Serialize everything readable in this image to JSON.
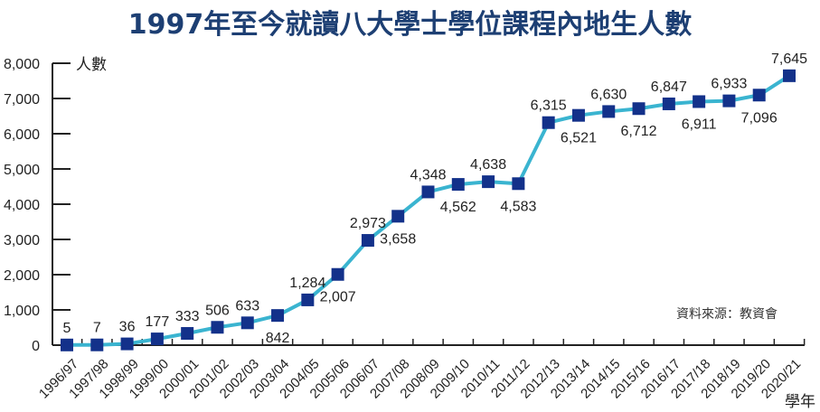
{
  "title": "1997年至今就讀八大學士學位課程內地生人數",
  "source_note": "資料來源：教資會",
  "colors": {
    "title": "#1d3f73",
    "line": "#3ab4d0",
    "marker": "#13318a",
    "axis": "#222222"
  },
  "chart_data": {
    "type": "line",
    "title": "1997年至今就讀八大學士學位課程內地生人數",
    "xlabel": "學年",
    "ylabel": "人數",
    "ylim": [
      0,
      8000
    ],
    "yticks": [
      0,
      1000,
      2000,
      3000,
      4000,
      5000,
      6000,
      7000,
      8000
    ],
    "ytick_labels": [
      "0",
      "1,000",
      "2,000",
      "3,000",
      "4,000",
      "5,000",
      "6,000",
      "7,000",
      "8,000"
    ],
    "grid": false,
    "legend": null,
    "annotation": "資料來源：教資會",
    "categories": [
      "1996/97",
      "1997/98",
      "1998/99",
      "1999/00",
      "2000/01",
      "2001/02",
      "2002/03",
      "2003/04",
      "2004/05",
      "2005/06",
      "2006/07",
      "2007/08",
      "2008/09",
      "2009/10",
      "2010/11",
      "2011/12",
      "2012/13",
      "2013/14",
      "2014/15",
      "2015/16",
      "2016/17",
      "2017/18",
      "2018/19",
      "2019/20",
      "2020/21"
    ],
    "values": [
      5,
      7,
      36,
      177,
      333,
      506,
      633,
      842,
      1284,
      2007,
      2973,
      3658,
      4348,
      4562,
      4638,
      4583,
      6315,
      6521,
      6630,
      6712,
      6847,
      6911,
      6933,
      7096,
      7645
    ],
    "value_labels": [
      "5",
      "7",
      "36",
      "177",
      "333",
      "506",
      "633",
      "842",
      "1,284",
      "2,007",
      "2,973",
      "3,658",
      "4,348",
      "4,562",
      "4,638",
      "4,583",
      "6,315",
      "6,521",
      "6,630",
      "6,712",
      "6,847",
      "6,911",
      "6,933",
      "7,096",
      "7,645"
    ],
    "label_positions": [
      "above",
      "above",
      "above",
      "above",
      "above",
      "above",
      "above",
      "below",
      "above",
      "below",
      "above",
      "below",
      "above",
      "below",
      "above",
      "below",
      "above",
      "below",
      "above",
      "below",
      "above",
      "below",
      "above",
      "below",
      "above"
    ]
  }
}
